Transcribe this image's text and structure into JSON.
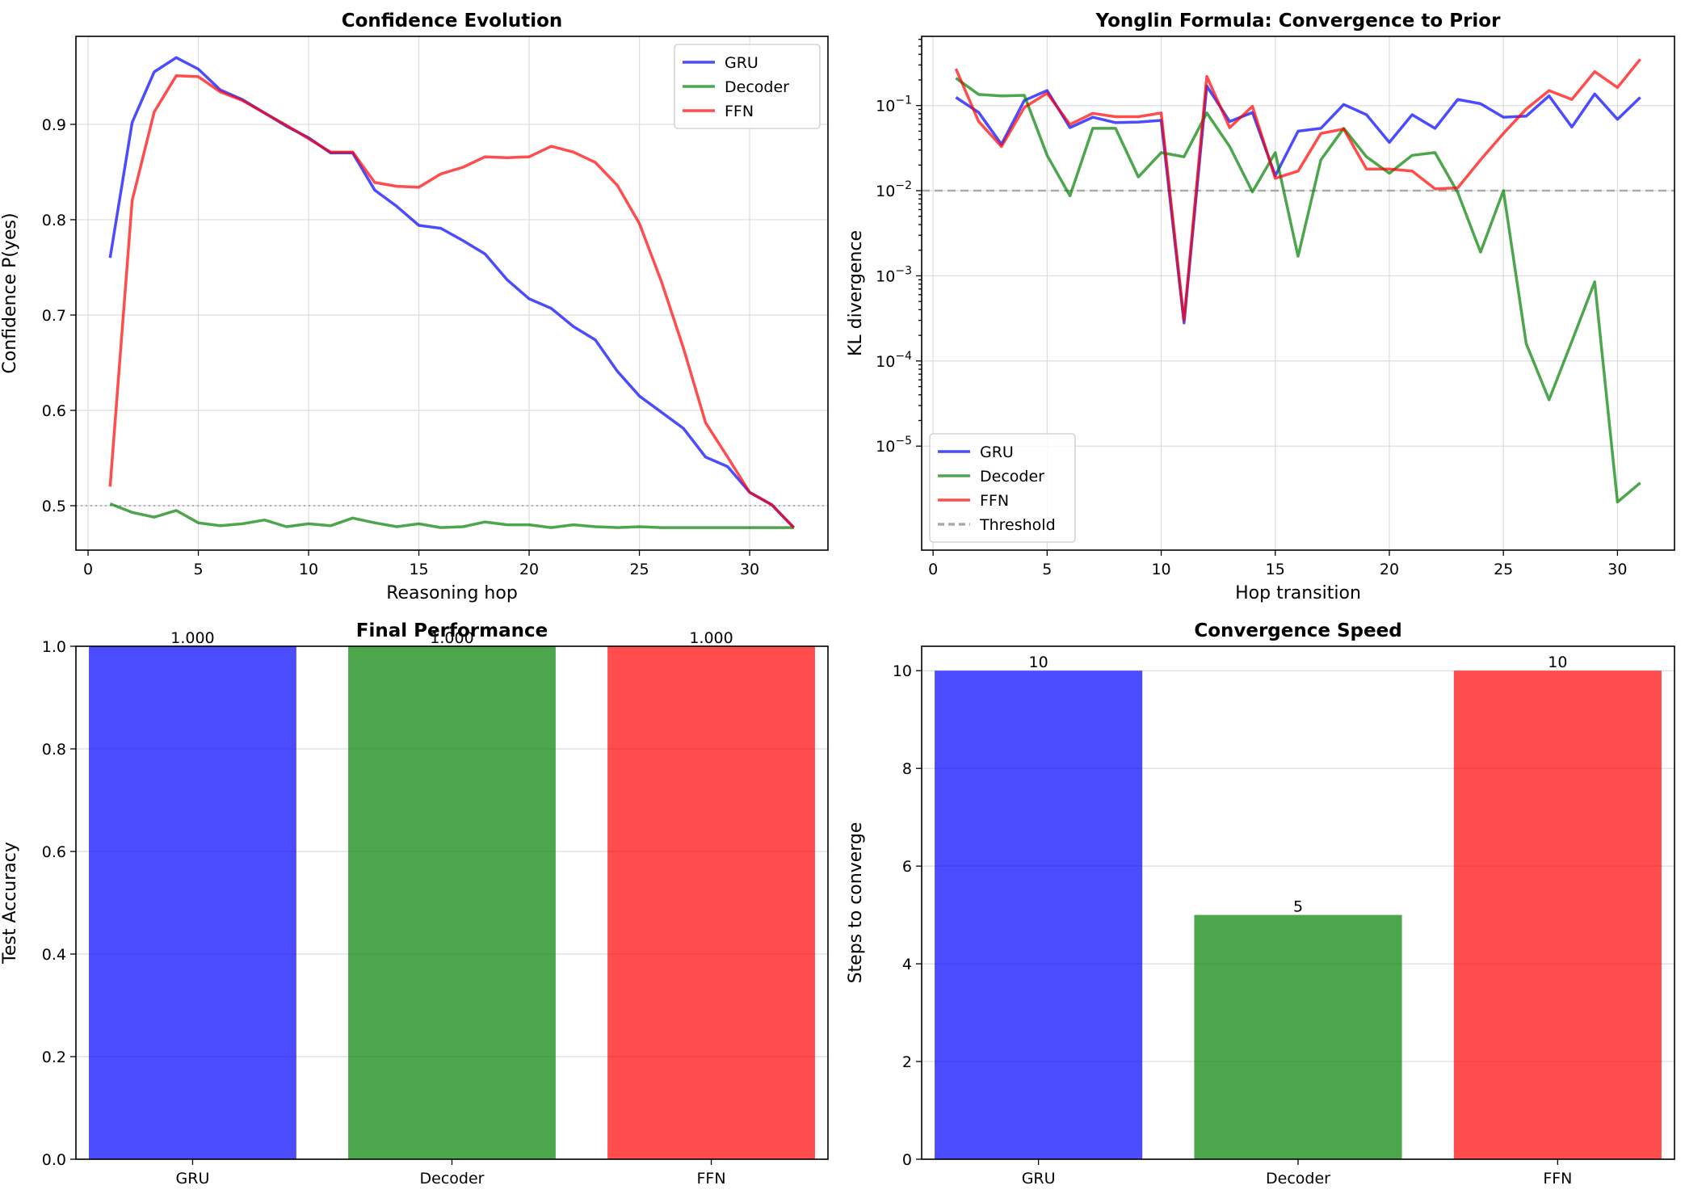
{
  "chart_data": [
    {
      "id": "confidence",
      "type": "line",
      "title": "Confidence Evolution",
      "xlabel": "Reasoning hop",
      "ylabel": "Confidence P(yes)",
      "xlim": [
        -0.55,
        33.55
      ],
      "ylim": [
        0.4534,
        0.9923
      ],
      "xticks": [
        0,
        5,
        10,
        15,
        20,
        25,
        30
      ],
      "yticks": [
        0.5,
        0.6,
        0.7,
        0.8,
        0.9
      ],
      "ytick_labels": [
        "0.5",
        "0.6",
        "0.7",
        "0.8",
        "0.9"
      ],
      "reference_line": {
        "y": 0.5,
        "style": "dotted",
        "color": "#999999"
      },
      "legend": {
        "position": "upper right",
        "entries": [
          "GRU",
          "Decoder",
          "FFN"
        ]
      },
      "x": [
        1,
        2,
        3,
        4,
        5,
        6,
        7,
        8,
        9,
        10,
        11,
        12,
        13,
        14,
        15,
        16,
        17,
        18,
        19,
        20,
        21,
        22,
        23,
        24,
        25,
        26,
        27,
        28,
        29,
        30,
        31,
        32
      ],
      "series": [
        {
          "name": "GRU",
          "color": "#0000ff",
          "values": [
            0.76,
            0.902,
            0.955,
            0.97,
            0.958,
            0.936,
            0.926,
            0.912,
            0.898,
            0.886,
            0.87,
            0.87,
            0.831,
            0.814,
            0.794,
            0.791,
            0.778,
            0.764,
            0.737,
            0.717,
            0.707,
            0.688,
            0.674,
            0.641,
            0.615,
            0.598,
            0.581,
            0.551,
            0.541,
            0.514,
            0.501,
            0.477
          ]
        },
        {
          "name": "Decoder",
          "color": "#008000",
          "values": [
            0.502,
            0.493,
            0.488,
            0.495,
            0.482,
            0.479,
            0.481,
            0.485,
            0.478,
            0.481,
            0.479,
            0.487,
            0.482,
            0.478,
            0.481,
            0.477,
            0.478,
            0.483,
            0.48,
            0.48,
            0.477,
            0.48,
            0.478,
            0.477,
            0.478,
            0.477,
            0.477,
            0.477,
            0.477,
            0.477,
            0.477,
            0.477
          ]
        },
        {
          "name": "FFN",
          "color": "#ff0000",
          "values": [
            0.52,
            0.82,
            0.913,
            0.951,
            0.95,
            0.934,
            0.925,
            0.912,
            0.899,
            0.885,
            0.871,
            0.871,
            0.839,
            0.835,
            0.834,
            0.848,
            0.855,
            0.866,
            0.865,
            0.866,
            0.877,
            0.871,
            0.86,
            0.836,
            0.796,
            0.735,
            0.665,
            0.587,
            0.551,
            0.514,
            0.501,
            0.477
          ]
        }
      ]
    },
    {
      "id": "kl",
      "type": "line",
      "yscale": "log",
      "title": "Yonglin Formula: Convergence to Prior",
      "xlabel": "Hop transition",
      "ylabel": "KL divergence",
      "xlim": [
        -0.5,
        32.5
      ],
      "ylim": [
        6e-07,
        0.65
      ],
      "xticks": [
        0,
        5,
        10,
        15,
        20,
        25,
        30
      ],
      "yticks_exp": [
        -5,
        -4,
        -3,
        -2,
        -1
      ],
      "ytick_labels": [
        "10",
        "10",
        "10",
        "10",
        "10"
      ],
      "ytick_superscripts": [
        "−5",
        "−4",
        "−3",
        "−2",
        "−1"
      ],
      "threshold": {
        "label": "Threshold",
        "value": 0.01,
        "color": "#aaaaaa"
      },
      "legend": {
        "position": "lower left",
        "entries": [
          "GRU",
          "Decoder",
          "FFN",
          "Threshold"
        ]
      },
      "x": [
        1,
        2,
        3,
        4,
        5,
        6,
        7,
        8,
        9,
        10,
        11,
        12,
        13,
        14,
        15,
        16,
        17,
        18,
        19,
        20,
        21,
        22,
        23,
        24,
        25,
        26,
        27,
        28,
        29,
        30,
        31
      ],
      "series": [
        {
          "name": "GRU",
          "color": "#0000ff",
          "values": [
            0.125,
            0.083,
            0.035,
            0.115,
            0.15,
            0.055,
            0.073,
            0.063,
            0.064,
            0.067,
            0.00028,
            0.17,
            0.065,
            0.083,
            0.015,
            0.05,
            0.054,
            0.103,
            0.078,
            0.037,
            0.078,
            0.054,
            0.118,
            0.105,
            0.073,
            0.075,
            0.13,
            0.056,
            0.137,
            0.069,
            0.125
          ]
        },
        {
          "name": "Decoder",
          "color": "#008000",
          "values": [
            0.21,
            0.135,
            0.13,
            0.132,
            0.026,
            0.0087,
            0.054,
            0.054,
            0.0145,
            0.028,
            0.025,
            0.082,
            0.033,
            0.0097,
            0.028,
            0.0017,
            0.023,
            0.054,
            0.025,
            0.016,
            0.026,
            0.028,
            0.0095,
            0.0019,
            0.01,
            0.00016,
            3.5e-05,
            0.00017,
            0.00085,
            2.2e-06,
            3.7e-06
          ]
        },
        {
          "name": "FFN",
          "color": "#ff0000",
          "values": [
            0.27,
            0.065,
            0.033,
            0.095,
            0.14,
            0.06,
            0.081,
            0.074,
            0.074,
            0.082,
            0.0003,
            0.22,
            0.055,
            0.098,
            0.014,
            0.017,
            0.047,
            0.053,
            0.018,
            0.018,
            0.017,
            0.0105,
            0.0108,
            0.023,
            0.047,
            0.091,
            0.15,
            0.118,
            0.25,
            0.163,
            0.35
          ]
        }
      ]
    },
    {
      "id": "accuracy",
      "type": "bar",
      "title": "Final Performance",
      "xlabel": "",
      "ylabel": "Test Accuracy",
      "ylim": [
        0,
        1.0
      ],
      "yticks": [
        0.0,
        0.2,
        0.4,
        0.6,
        0.8,
        1.0
      ],
      "ytick_labels": [
        "0.0",
        "0.2",
        "0.4",
        "0.6",
        "0.8",
        "1.0"
      ],
      "categories": [
        "GRU",
        "Decoder",
        "FFN"
      ],
      "values": [
        1.0,
        1.0,
        1.0
      ],
      "value_labels": [
        "1.000",
        "1.000",
        "1.000"
      ],
      "colors": [
        "#0000ff",
        "#008000",
        "#ff0000"
      ]
    },
    {
      "id": "speed",
      "type": "bar",
      "title": "Convergence Speed",
      "xlabel": "",
      "ylabel": "Steps to converge",
      "ylim": [
        0,
        10.5
      ],
      "yticks": [
        0,
        2,
        4,
        6,
        8,
        10
      ],
      "ytick_labels": [
        "0",
        "2",
        "4",
        "6",
        "8",
        "10"
      ],
      "categories": [
        "GRU",
        "Decoder",
        "FFN"
      ],
      "values": [
        10,
        5,
        10
      ],
      "value_labels": [
        "10",
        "5",
        "10"
      ],
      "colors": [
        "#0000ff",
        "#008000",
        "#ff0000"
      ]
    }
  ]
}
